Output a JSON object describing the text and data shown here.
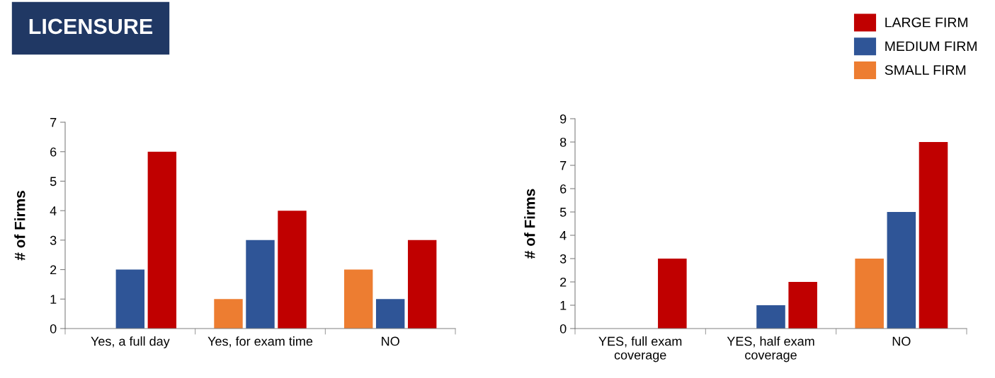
{
  "chart_data": [
    {
      "type": "bar",
      "title": "LICENSURE",
      "ylabel": "# of Firms",
      "categories": [
        "Yes, a full day",
        "Yes, for exam time",
        "NO"
      ],
      "ylim": [
        0,
        7
      ],
      "yticks": [
        0,
        1,
        2,
        3,
        4,
        5,
        6,
        7
      ],
      "grid": false,
      "legend": "top right",
      "series": [
        {
          "name": "SMALL FIRM",
          "color": "#ed7d31",
          "values": [
            0,
            1,
            2
          ]
        },
        {
          "name": "MEDIUM FIRM",
          "color": "#2f5597",
          "values": [
            2,
            3,
            1
          ]
        },
        {
          "name": "LARGE FIRM",
          "color": "#c00000",
          "values": [
            6,
            4,
            3
          ]
        }
      ]
    },
    {
      "type": "bar",
      "ylabel": "# of Firms",
      "categories": [
        "YES, full exam\ncoverage",
        "YES, half exam\ncoverage",
        "NO"
      ],
      "ylim": [
        0,
        9
      ],
      "yticks": [
        0,
        1,
        2,
        3,
        4,
        5,
        6,
        7,
        8,
        9
      ],
      "grid": false,
      "series": [
        {
          "color": "#ed7d31",
          "values": [
            0,
            0,
            3
          ]
        },
        {
          "color": "#2f5597",
          "values": [
            0,
            1,
            5
          ]
        },
        {
          "color": "#c00000",
          "values": [
            3,
            2,
            8
          ]
        }
      ]
    }
  ]
}
